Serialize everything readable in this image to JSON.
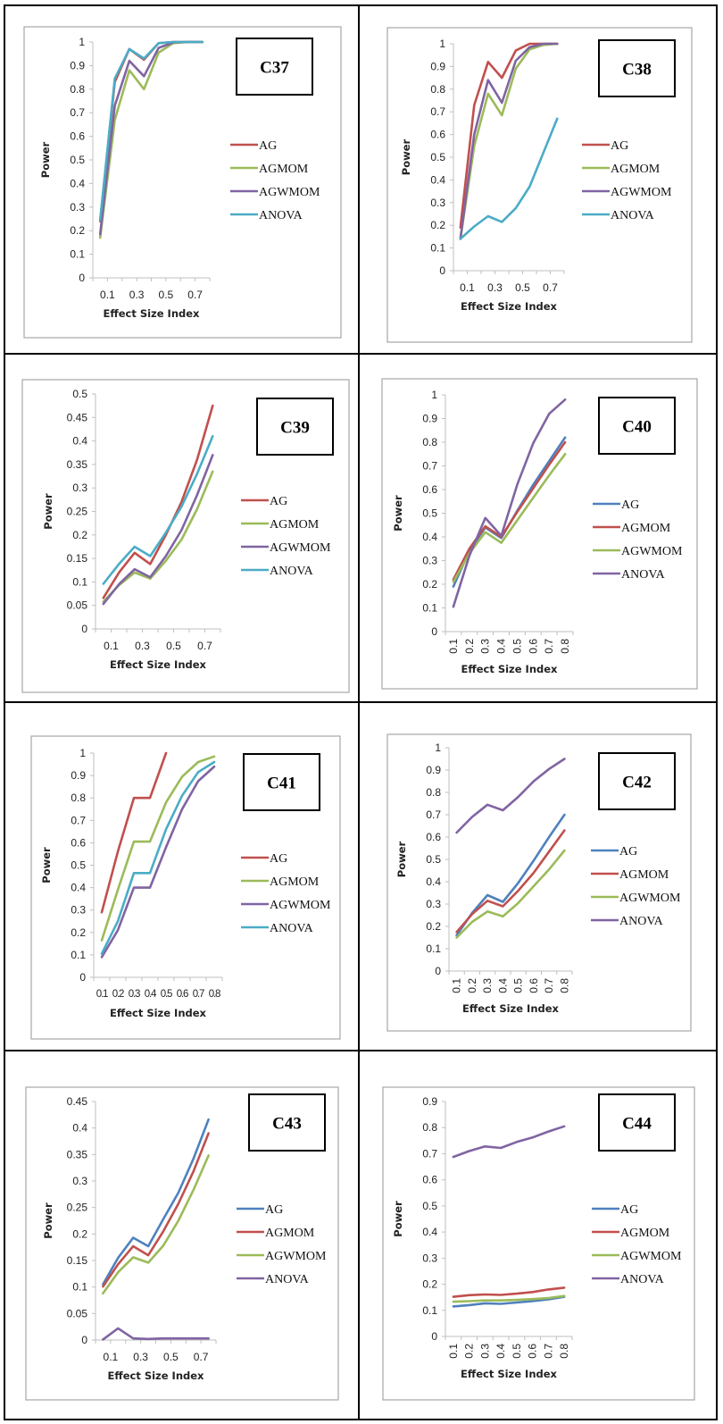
{
  "colors": {
    "red": "#c0504d",
    "green": "#9bbb59",
    "purple": "#8064a2",
    "cyan": "#4bacc6",
    "blue": "#4f81bd"
  },
  "chart_data": [
    {
      "type": "line",
      "title": "C37",
      "xlabel": "Effect Size Index",
      "ylabel": "Power",
      "x": [
        0.1,
        0.2,
        0.3,
        0.4,
        0.5,
        0.6,
        0.7,
        0.8
      ],
      "xtick_labels": [
        "0.1",
        "0.3",
        "0.5",
        "0.7"
      ],
      "xtick_style": "alternate",
      "ylim": [
        0,
        1
      ],
      "yticks": [
        "0",
        "0.1",
        "0.2",
        "0.3",
        "0.4",
        "0.5",
        "0.6",
        "0.7",
        "0.8",
        "0.9",
        "1"
      ],
      "legend": "right",
      "series": [
        {
          "name": "AG",
          "color": "red",
          "values": [
            0.24,
            0.83,
            0.97,
            0.925,
            0.995,
            1.0,
            1.0,
            1.0
          ]
        },
        {
          "name": "AGMOM",
          "color": "green",
          "values": [
            0.17,
            0.67,
            0.88,
            0.8,
            0.955,
            0.995,
            1.0,
            1.0
          ]
        },
        {
          "name": "AGWMOM",
          "color": "purple",
          "values": [
            0.185,
            0.73,
            0.92,
            0.855,
            0.975,
            0.998,
            1.0,
            1.0
          ]
        },
        {
          "name": "ANOVA",
          "color": "cyan",
          "values": [
            0.245,
            0.845,
            0.97,
            0.93,
            0.995,
            1.0,
            1.0,
            1.0
          ]
        }
      ]
    },
    {
      "type": "line",
      "title": "C38",
      "xlabel": "Effect Size Index",
      "ylabel": "Power",
      "x": [
        0.1,
        0.2,
        0.3,
        0.4,
        0.5,
        0.6,
        0.7,
        0.8
      ],
      "xtick_labels": [
        "0.1",
        "0.3",
        "0.5",
        "0.7"
      ],
      "xtick_style": "alternate",
      "ylim": [
        0,
        1
      ],
      "yticks": [
        "0",
        "0.1",
        "0.2",
        "0.3",
        "0.4",
        "0.5",
        "0.6",
        "0.7",
        "0.8",
        "0.9",
        "1"
      ],
      "legend": "right",
      "series": [
        {
          "name": "AG",
          "color": "red",
          "values": [
            0.19,
            0.73,
            0.92,
            0.85,
            0.97,
            1.0,
            1.0,
            1.0
          ]
        },
        {
          "name": "AGMOM",
          "color": "green",
          "values": [
            0.14,
            0.55,
            0.78,
            0.685,
            0.89,
            0.975,
            0.995,
            1.0
          ]
        },
        {
          "name": "AGWMOM",
          "color": "purple",
          "values": [
            0.14,
            0.6,
            0.84,
            0.74,
            0.925,
            0.985,
            1.0,
            1.0
          ]
        },
        {
          "name": "ANOVA",
          "color": "cyan",
          "values": [
            0.14,
            0.195,
            0.24,
            0.215,
            0.275,
            0.37,
            0.52,
            0.67
          ]
        }
      ]
    },
    {
      "type": "line",
      "title": "C39",
      "xlabel": "Effect Size Index",
      "ylabel": "Power",
      "x": [
        0.1,
        0.2,
        0.3,
        0.4,
        0.5,
        0.6,
        0.7,
        0.8
      ],
      "xtick_labels": [
        "0.1",
        "0.3",
        "0.5",
        "0.7"
      ],
      "xtick_style": "alternate",
      "ylim": [
        0,
        0.5
      ],
      "yticks": [
        "0",
        "0.05",
        "0.1",
        "0.15",
        "0.2",
        "0.25",
        "0.3",
        "0.35",
        "0.4",
        "0.45",
        "0.5"
      ],
      "legend": "right",
      "series": [
        {
          "name": "AG",
          "color": "red",
          "values": [
            0.066,
            0.12,
            0.162,
            0.138,
            0.2,
            0.27,
            0.36,
            0.475
          ]
        },
        {
          "name": "AGMOM",
          "color": "green",
          "values": [
            0.058,
            0.093,
            0.12,
            0.107,
            0.145,
            0.19,
            0.255,
            0.335
          ]
        },
        {
          "name": "AGWMOM",
          "color": "purple",
          "values": [
            0.053,
            0.095,
            0.127,
            0.11,
            0.155,
            0.21,
            0.285,
            0.37
          ]
        },
        {
          "name": "ANOVA",
          "color": "cyan",
          "values": [
            0.096,
            0.138,
            0.175,
            0.155,
            0.205,
            0.26,
            0.33,
            0.41
          ]
        }
      ]
    },
    {
      "type": "line",
      "title": "C40",
      "xlabel": "Effect Size Index",
      "ylabel": "Power",
      "x": [
        0.1,
        0.2,
        0.3,
        0.4,
        0.5,
        0.6,
        0.7,
        0.8
      ],
      "xtick_labels": [
        "0.1",
        "0.2",
        "0.3",
        "0.4",
        "0.5",
        "0.6",
        "0.7",
        "0.8"
      ],
      "xtick_style": "rotated",
      "ylim": [
        0,
        1
      ],
      "yticks": [
        "0",
        "0.1",
        "0.2",
        "0.3",
        "0.4",
        "0.5",
        "0.6",
        "0.7",
        "0.8",
        "0.9",
        "1"
      ],
      "legend": "right",
      "series": [
        {
          "name": "AG",
          "color": "blue",
          "values": [
            0.19,
            0.34,
            0.44,
            0.395,
            0.51,
            0.62,
            0.72,
            0.82
          ]
        },
        {
          "name": "AGMOM",
          "color": "red",
          "values": [
            0.22,
            0.35,
            0.445,
            0.4,
            0.505,
            0.605,
            0.705,
            0.8
          ]
        },
        {
          "name": "AGWMOM",
          "color": "green",
          "values": [
            0.21,
            0.33,
            0.42,
            0.375,
            0.47,
            0.565,
            0.66,
            0.75
          ]
        },
        {
          "name": "ANOVA",
          "color": "purple",
          "values": [
            0.105,
            0.32,
            0.48,
            0.405,
            0.62,
            0.795,
            0.92,
            0.98
          ]
        }
      ]
    },
    {
      "type": "line",
      "title": "C41",
      "xlabel": "Effect Size Index",
      "ylabel": "Power",
      "x": [
        0.1,
        0.2,
        0.3,
        0.4,
        0.5,
        0.6,
        0.7,
        0.8
      ],
      "xtick_labels": [
        "0.1",
        "0.2",
        "0.3",
        "0.4",
        "0.5",
        "0.6",
        "0.7",
        "0.8"
      ],
      "xtick_style": "compressed",
      "ylim": [
        0,
        1
      ],
      "yticks": [
        "0",
        "0.1",
        "0.2",
        "0.3",
        "0.4",
        "0.5",
        "0.6",
        "0.7",
        "0.8",
        "0.9",
        "1"
      ],
      "legend": "right",
      "series": [
        {
          "name": "AG",
          "color": "red",
          "values": [
            0.29,
            0.56,
            0.8,
            0.8,
            1.0,
            null,
            null,
            null
          ]
        },
        {
          "name": "AGMOM",
          "color": "green",
          "values": [
            0.165,
            0.39,
            0.605,
            0.605,
            0.78,
            0.895,
            0.96,
            0.985
          ]
        },
        {
          "name": "AGWMOM",
          "color": "purple",
          "values": [
            0.09,
            0.21,
            0.4,
            0.4,
            0.58,
            0.75,
            0.875,
            0.94
          ]
        },
        {
          "name": "ANOVA",
          "color": "cyan",
          "values": [
            0.105,
            0.25,
            0.465,
            0.465,
            0.66,
            0.81,
            0.915,
            0.96
          ]
        }
      ]
    },
    {
      "type": "line",
      "title": "C42",
      "xlabel": "Effect Size Index",
      "ylabel": "Power",
      "x": [
        0.1,
        0.2,
        0.3,
        0.4,
        0.5,
        0.6,
        0.7,
        0.8
      ],
      "xtick_labels": [
        "0.1",
        "0.2",
        "0.3",
        "0.4",
        "0.5",
        "0.6",
        "0.7",
        "0.8"
      ],
      "xtick_style": "rotated",
      "ylim": [
        0,
        1
      ],
      "yticks": [
        "0",
        "0.1",
        "0.2",
        "0.3",
        "0.4",
        "0.5",
        "0.6",
        "0.7",
        "0.8",
        "0.9",
        "1"
      ],
      "legend": "right",
      "series": [
        {
          "name": "AG",
          "color": "blue",
          "values": [
            0.16,
            0.26,
            0.34,
            0.31,
            0.395,
            0.495,
            0.6,
            0.7
          ]
        },
        {
          "name": "AGMOM",
          "color": "red",
          "values": [
            0.175,
            0.255,
            0.315,
            0.29,
            0.36,
            0.44,
            0.535,
            0.63
          ]
        },
        {
          "name": "AGWMOM",
          "color": "green",
          "values": [
            0.15,
            0.22,
            0.267,
            0.245,
            0.305,
            0.38,
            0.455,
            0.54
          ]
        },
        {
          "name": "ANOVA",
          "color": "purple",
          "values": [
            0.62,
            0.69,
            0.745,
            0.72,
            0.78,
            0.85,
            0.905,
            0.95
          ]
        }
      ]
    },
    {
      "type": "line",
      "title": "C43",
      "xlabel": "Effect Size Index",
      "ylabel": "Power",
      "x": [
        0.1,
        0.2,
        0.3,
        0.4,
        0.5,
        0.6,
        0.7,
        0.8
      ],
      "xtick_labels": [
        "0.1",
        "0.3",
        "0.5",
        "0.7"
      ],
      "xtick_style": "alternate",
      "ylim": [
        0,
        0.45
      ],
      "yticks": [
        "0",
        "0.05",
        "0.1",
        "0.15",
        "0.2",
        "0.25",
        "0.3",
        "0.35",
        "0.4",
        "0.45"
      ],
      "legend": "right",
      "series": [
        {
          "name": "AG",
          "color": "blue",
          "values": [
            0.105,
            0.155,
            0.193,
            0.177,
            0.228,
            0.278,
            0.342,
            0.416
          ]
        },
        {
          "name": "AGMOM",
          "color": "red",
          "values": [
            0.101,
            0.143,
            0.177,
            0.16,
            0.205,
            0.257,
            0.318,
            0.39
          ]
        },
        {
          "name": "AGWMOM",
          "color": "green",
          "values": [
            0.088,
            0.128,
            0.156,
            0.146,
            0.178,
            0.225,
            0.283,
            0.348
          ]
        },
        {
          "name": "ANOVA",
          "color": "purple",
          "values": [
            0.001,
            0.022,
            0.003,
            0.002,
            0.003,
            0.003,
            0.003,
            0.003
          ]
        }
      ]
    },
    {
      "type": "line",
      "title": "C44",
      "xlabel": "Effect Size Index",
      "ylabel": "Power",
      "x": [
        0.1,
        0.2,
        0.3,
        0.4,
        0.5,
        0.6,
        0.7,
        0.8
      ],
      "xtick_labels": [
        "0.1",
        "0.2",
        "0.3",
        "0.4",
        "0.5",
        "0.6",
        "0.7",
        "0.8"
      ],
      "xtick_style": "rotated",
      "ylim": [
        0,
        0.9
      ],
      "yticks": [
        "0",
        "0.1",
        "0.2",
        "0.3",
        "0.4",
        "0.5",
        "0.6",
        "0.7",
        "0.8",
        "0.9"
      ],
      "legend": "right",
      "series": [
        {
          "name": "AG",
          "color": "blue",
          "values": [
            0.115,
            0.12,
            0.127,
            0.125,
            0.13,
            0.135,
            0.142,
            0.152
          ]
        },
        {
          "name": "AGMOM",
          "color": "red",
          "values": [
            0.152,
            0.158,
            0.161,
            0.159,
            0.164,
            0.17,
            0.18,
            0.187
          ]
        },
        {
          "name": "AGWMOM",
          "color": "green",
          "values": [
            0.133,
            0.135,
            0.138,
            0.138,
            0.14,
            0.143,
            0.147,
            0.155
          ]
        },
        {
          "name": "ANOVA",
          "color": "purple",
          "values": [
            0.688,
            0.71,
            0.728,
            0.722,
            0.745,
            0.762,
            0.785,
            0.805
          ]
        }
      ]
    }
  ]
}
